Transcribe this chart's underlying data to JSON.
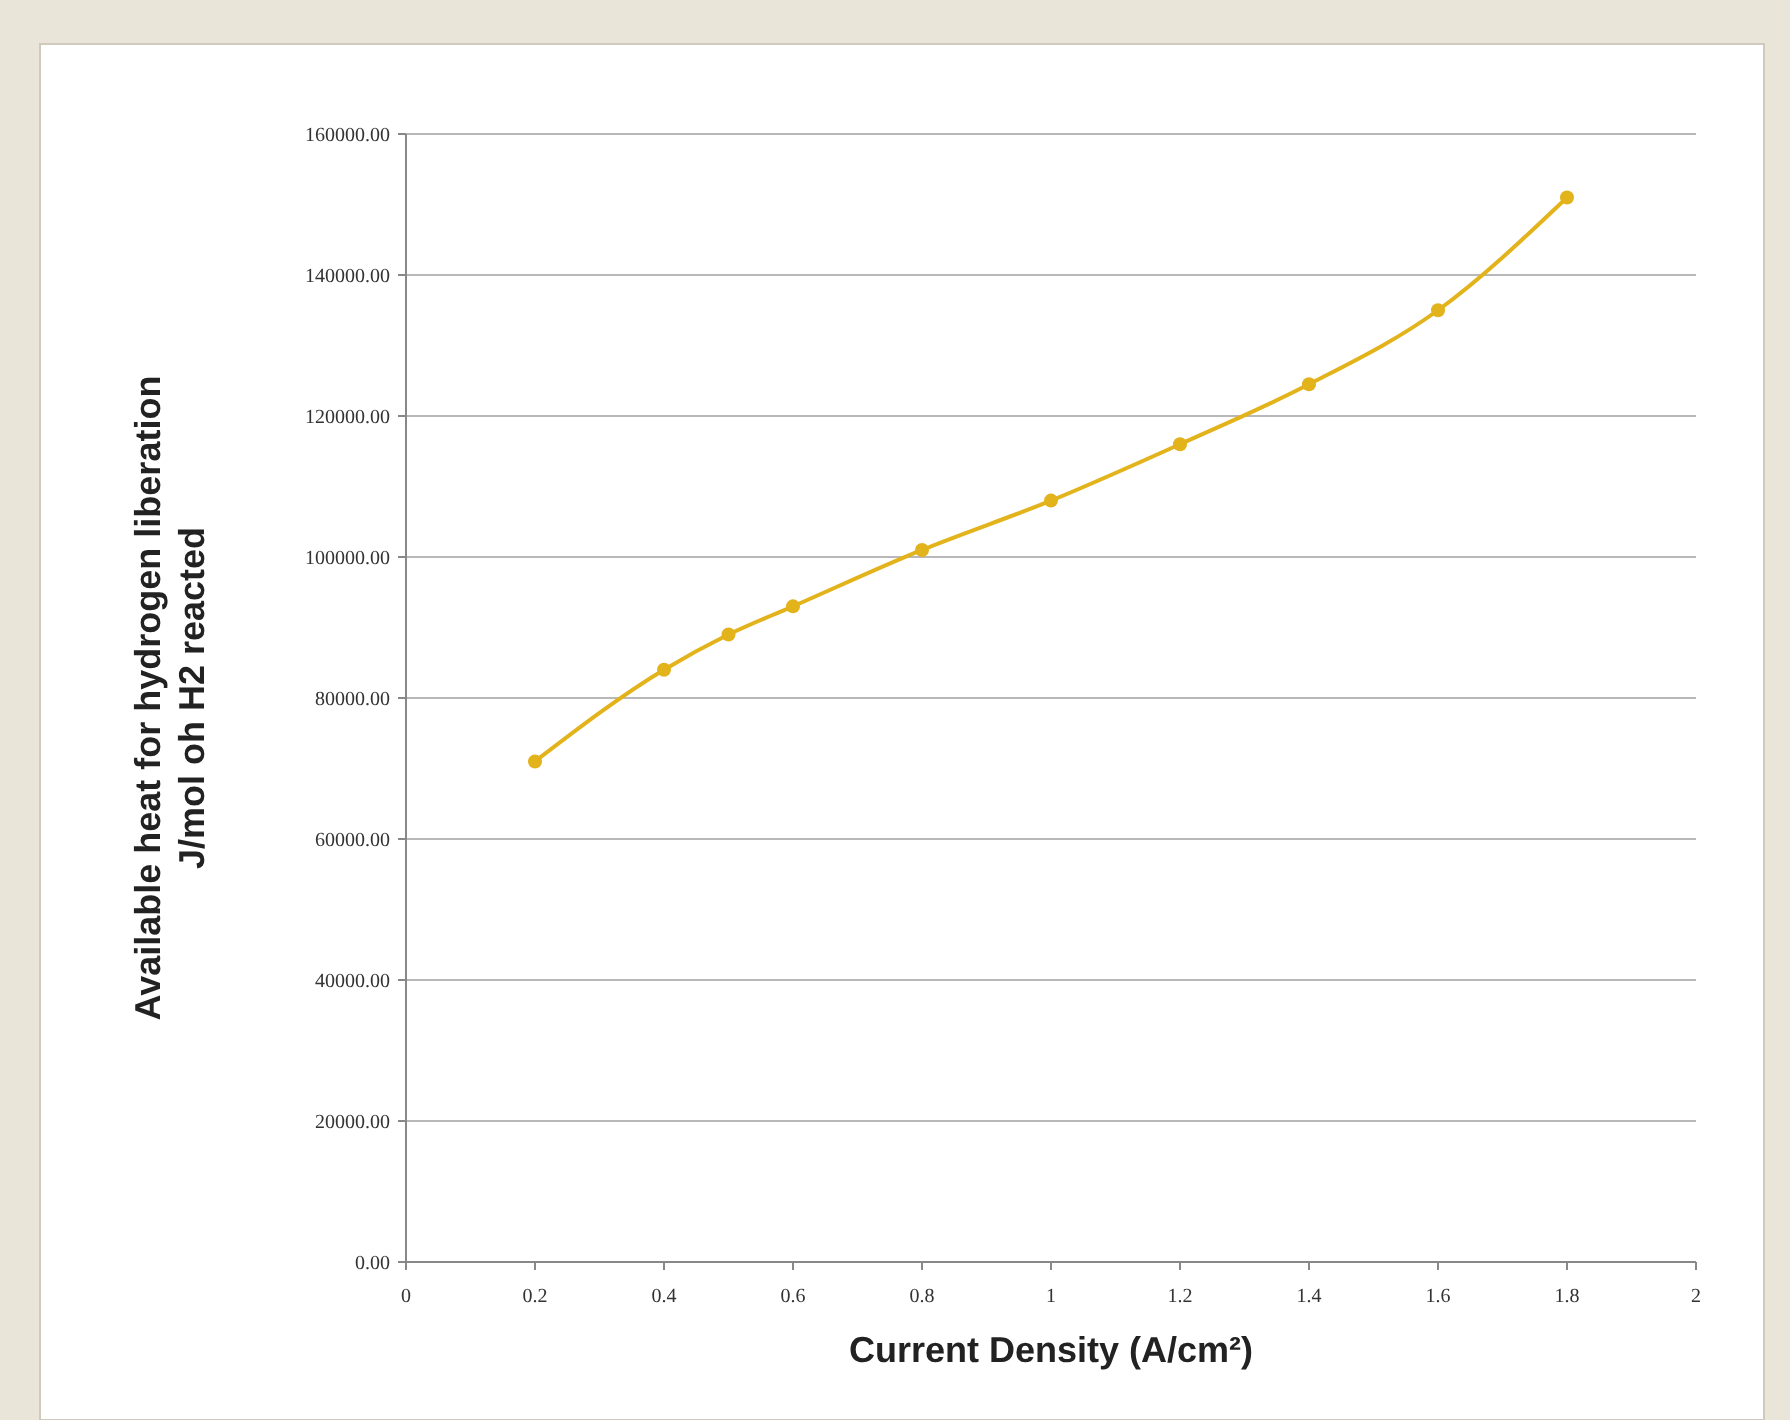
{
  "chart_data": {
    "type": "line",
    "xlabel": "Current Density (A/cm²)",
    "ylabel": "Available heat for hydrogen liberation J/mol oh H2 reacted",
    "x": [
      0.2,
      0.4,
      0.5,
      0.6,
      0.8,
      1.0,
      1.2,
      1.4,
      1.6,
      1.8
    ],
    "series": [
      {
        "color": "#e3b31c",
        "values": [
          71000,
          84000,
          89000,
          93000,
          101000,
          108000,
          116000,
          124500,
          135000,
          151000
        ]
      }
    ],
    "xlim": [
      0,
      2
    ],
    "xticks": [
      0,
      0.2,
      0.4,
      0.6,
      0.8,
      1,
      1.2,
      1.4,
      1.6,
      1.8,
      2
    ],
    "ylim": [
      0,
      160000
    ],
    "yticks": [
      {
        "value": 0,
        "label": "0.00"
      },
      {
        "value": 20000,
        "label": "20000.00"
      },
      {
        "value": 40000,
        "label": "40000.00"
      },
      {
        "value": 60000,
        "label": "60000.00"
      },
      {
        "value": 80000,
        "label": "80000.00"
      },
      {
        "value": 100000,
        "label": "100000.00"
      },
      {
        "value": 120000,
        "label": "120000.00"
      },
      {
        "value": 140000,
        "label": "140000.00"
      },
      {
        "value": 160000,
        "label": "160000.00"
      }
    ],
    "grid": "y",
    "marker": "circle",
    "line_style": "solid"
  }
}
